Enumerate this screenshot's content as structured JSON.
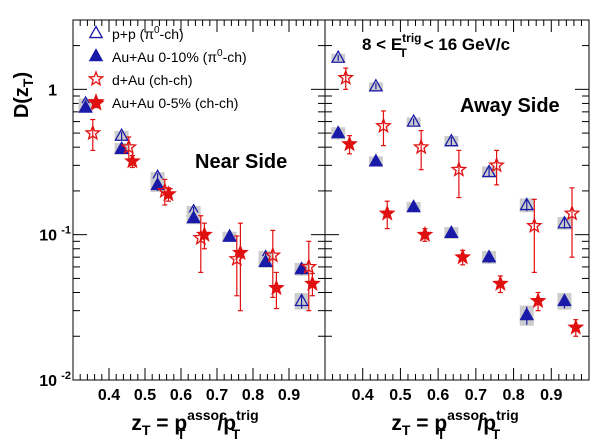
{
  "chart_data": {
    "type": "scatter",
    "log_y": true,
    "ylim": [
      0.01,
      3.0
    ],
    "xlim": [
      0.3,
      1.0
    ],
    "grid": false,
    "ylabel": {
      "main": "D(z",
      "sub": "T",
      "close": ")"
    },
    "xlabel": {
      "z": "z",
      "zsub": "T",
      "eq": " = p",
      "sup1": "assoc",
      "sub1": "T",
      "slash": "/p",
      "sup2": "trig",
      "sub2": "T"
    },
    "x_ticks": [
      "0.4",
      "0.5",
      "0.6",
      "0.7",
      "0.8",
      "0.9"
    ],
    "y_ticks": [
      {
        "base": "10",
        "exp": "-2"
      },
      {
        "base": "10",
        "exp": "-1"
      },
      {
        "base": "1",
        "exp": ""
      }
    ],
    "legend": {
      "placement": "top-left",
      "entries": [
        {
          "series": 0,
          "pre": "p+p (",
          "sup": "0",
          "post": "-ch)",
          "pi": "π"
        },
        {
          "series": 1,
          "pre": "Au+Au 0-10% (",
          "sup": "0",
          "post": "-ch)",
          "pi": "π"
        },
        {
          "series": 2,
          "pre": "d+Au (ch-ch)",
          "sup": "",
          "post": "",
          "pi": ""
        },
        {
          "series": 3,
          "pre": "Au+Au 0-5% (ch-ch)",
          "sup": "",
          "post": "",
          "pi": ""
        }
      ]
    },
    "trigger_label": {
      "pre": "8 < E",
      "sup": "trig",
      "sub": "T",
      "post": " < 16 GeV/c"
    },
    "series_styles": [
      {
        "marker": "triangle-open",
        "color": "#1a1aa8"
      },
      {
        "marker": "triangle-filled",
        "color": "#1a1aa8"
      },
      {
        "marker": "star-open",
        "color": "#e01010"
      },
      {
        "marker": "star-filled",
        "color": "#e01010"
      }
    ],
    "panels": [
      {
        "label": "Near Side",
        "series": [
          {
            "x": [
              0.335,
              0.435,
              0.535,
              0.635,
              0.735,
              0.835,
              0.935
            ],
            "y": [
              0.8,
              0.48,
              0.25,
              0.145,
              0.097,
              0.07,
              0.035
            ],
            "err": [
              0.05,
              0.03,
              0.015,
              0.01,
              0.006,
              0.006,
              0.004
            ]
          },
          {
            "x": [
              0.335,
              0.435,
              0.535,
              0.635,
              0.735,
              0.835,
              0.935
            ],
            "y": [
              0.75,
              0.39,
              0.22,
              0.13,
              0.097,
              0.065,
              0.058
            ],
            "err": [
              0.04,
              0.03,
              0.02,
              0.01,
              0.006,
              0.005,
              0.005
            ]
          },
          {
            "x": [
              0.355,
              0.455,
              0.555,
              0.655,
              0.755,
              0.855,
              0.955
            ],
            "y": [
              0.5,
              0.4,
              0.2,
              0.095,
              0.068,
              0.072,
              0.06
            ],
            "err": [
              0.12,
              0.07,
              0.04,
              0.04,
              0.03,
              0.035,
              0.03
            ]
          },
          {
            "x": [
              0.365,
              0.465,
              0.565,
              0.665,
              0.765,
              0.865,
              0.965
            ],
            "y": [
              0.8,
              0.32,
              0.19,
              0.1,
              0.075,
              0.043,
              0.046
            ],
            "err": [
              0.05,
              0.03,
              0.02,
              0.02,
              0.045,
              0.012,
              0.008
            ]
          }
        ]
      },
      {
        "label": "Away Side",
        "series": [
          {
            "x": [
              0.335,
              0.435,
              0.535,
              0.635,
              0.735,
              0.835,
              0.935
            ],
            "y": [
              1.65,
              1.05,
              0.6,
              0.44,
              0.27,
              0.16,
              0.12
            ],
            "err": [
              0.08,
              0.05,
              0.03,
              0.03,
              0.02,
              0.015,
              0.01
            ]
          },
          {
            "x": [
              0.335,
              0.435,
              0.535,
              0.635,
              0.735,
              0.835,
              0.935
            ],
            "y": [
              0.5,
              0.32,
              0.155,
              0.103,
              0.07,
              0.028,
              0.035
            ],
            "err": [
              0.04,
              0.02,
              0.01,
              0.008,
              0.006,
              0.004,
              0.004
            ]
          },
          {
            "x": [
              0.355,
              0.455,
              0.555,
              0.655,
              0.755,
              0.855,
              0.955
            ],
            "y": [
              1.2,
              0.56,
              0.4,
              0.28,
              0.3,
              0.115,
              0.14
            ],
            "err": [
              0.2,
              0.15,
              0.12,
              0.1,
              0.08,
              0.06,
              0.07
            ]
          },
          {
            "x": [
              0.365,
              0.465,
              0.565,
              0.665,
              0.765,
              0.865,
              0.965
            ],
            "y": [
              0.42,
              0.14,
              0.1,
              0.07,
              0.046,
              0.035,
              0.023
            ],
            "err": [
              0.06,
              0.03,
              0.01,
              0.008,
              0.006,
              0.005,
              0.003
            ]
          }
        ]
      }
    ]
  }
}
